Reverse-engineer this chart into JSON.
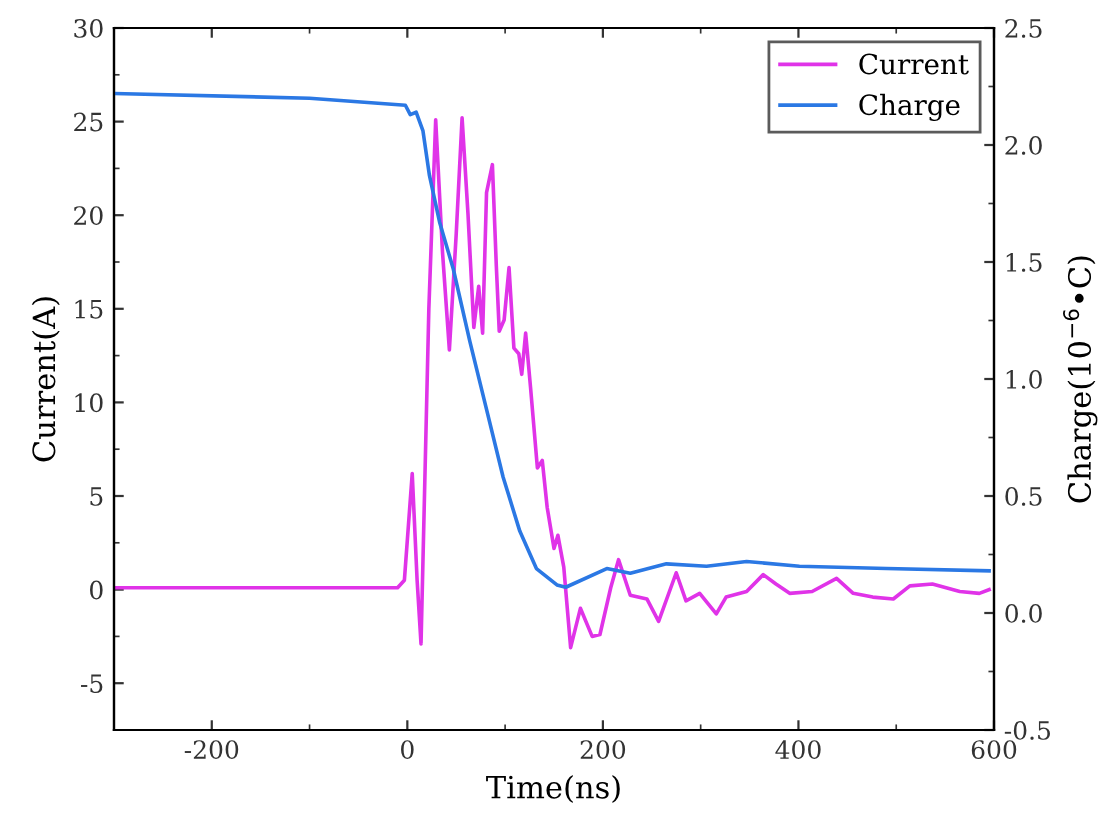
{
  "chart_data": {
    "type": "line",
    "xlabel": "Time(ns)",
    "ylabel": "Current(A)",
    "y2label": "Charge(10$^{−6}$•C)",
    "xlim": [
      -300,
      600
    ],
    "xticks": [
      -200,
      0,
      200,
      400,
      600
    ],
    "ylim": [
      -7.5,
      30
    ],
    "yticks": [
      -5,
      0,
      5,
      10,
      15,
      20,
      25,
      30
    ],
    "y2lim": [
      -0.5,
      2.5
    ],
    "y2ticks": [
      -0.5,
      {
        "value": 0,
        "label": "0.0"
      },
      0.5,
      {
        "value": 1,
        "label": "1.0"
      },
      1.5,
      {
        "value": 2,
        "label": "2.0"
      },
      2.5
    ],
    "grid": false,
    "legend": "top right",
    "marker": "none",
    "line_style": "solid",
    "series": [
      {
        "name": "Current",
        "color": "#e033e8",
        "x": [
          -300,
          -100,
          -10,
          -3,
          5,
          10,
          14,
          22,
          29,
          36,
          43,
          50,
          56,
          62,
          68,
          73,
          77,
          81,
          87,
          91,
          94,
          99,
          104,
          109,
          114,
          117,
          121,
          126,
          133,
          138,
          143,
          150,
          154,
          160,
          167,
          177,
          189,
          197,
          208,
          216,
          228,
          245,
          257,
          275,
          285,
          299,
          316,
          326,
          347,
          364,
          377,
          391,
          414,
          439,
          456,
          476,
          497,
          514,
          537,
          565,
          585,
          595
        ],
        "values": [
          0.1,
          0.1,
          0.1,
          0.5,
          6.2,
          0.5,
          -2.9,
          15,
          25.1,
          18,
          12.8,
          19,
          25.2,
          20.1,
          14.0,
          16.2,
          13.7,
          21.2,
          22.7,
          17.3,
          13.8,
          14.4,
          17.2,
          12.9,
          12.6,
          11.5,
          13.7,
          10.8,
          6.5,
          6.9,
          4.4,
          2.2,
          2.9,
          1.2,
          -3.1,
          -1.0,
          -2.5,
          -2.4,
          0.1,
          1.6,
          -0.3,
          -0.5,
          -1.7,
          0.9,
          -0.6,
          -0.2,
          -1.3,
          -0.4,
          -0.1,
          0.8,
          0.3,
          -0.2,
          -0.1,
          0.6,
          -0.2,
          -0.4,
          -0.5,
          0.2,
          0.3,
          -0.1,
          -0.2,
          0.0
        ]
      },
      {
        "name": "Charge",
        "color": "#2b78e4",
        "axis": "y2",
        "x": [
          -300,
          -100,
          -2,
          3,
          9,
          16,
          22.6,
          33,
          47,
          64,
          81,
          98,
          115,
          132,
          153,
          162,
          204,
          228,
          265,
          306,
          347,
          401,
          490,
          595
        ],
        "values": [
          2.22,
          2.2,
          2.17,
          2.13,
          2.14,
          2.06,
          1.87,
          1.67,
          1.47,
          1.16,
          0.87,
          0.58,
          0.35,
          0.19,
          0.12,
          0.11,
          0.19,
          0.17,
          0.21,
          0.2,
          0.22,
          0.2,
          0.19,
          0.18
        ]
      }
    ]
  }
}
